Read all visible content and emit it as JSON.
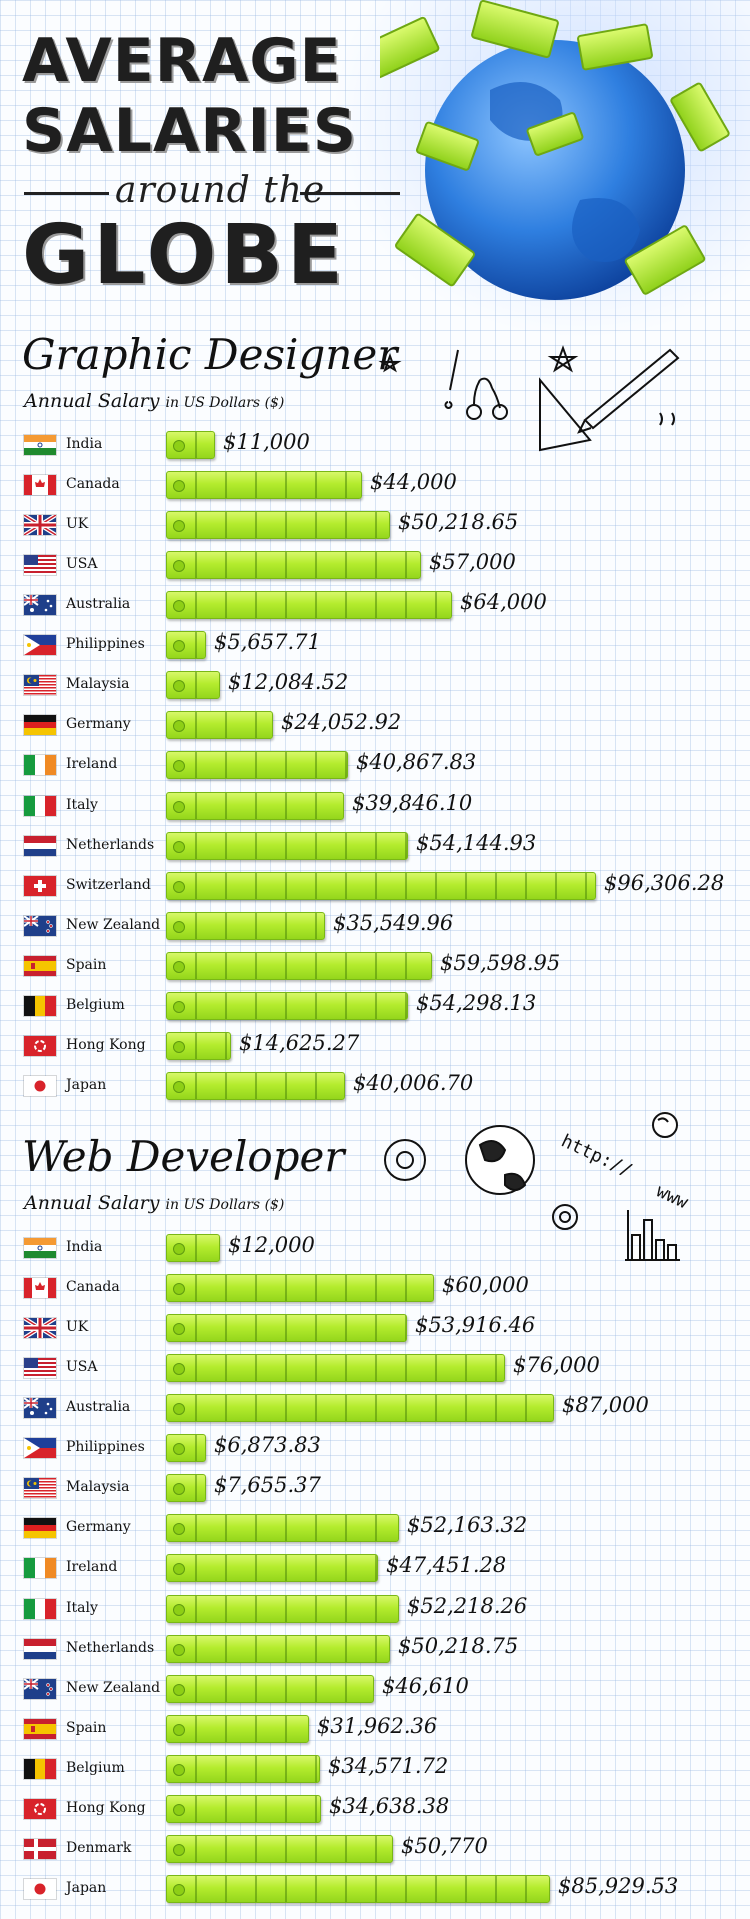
{
  "header": {
    "line1": "Average",
    "line2": "Salaries",
    "line3": "around the",
    "line4": "Globe"
  },
  "colors": {
    "money_green": "#b4ec2e",
    "globe_blue": "#2f7fe0",
    "ink": "#111111"
  },
  "chart_data": [
    {
      "type": "bar",
      "title": "Graphic Designer",
      "ylabel": "Annual Salary",
      "unit": "in US Dollars ($)",
      "categories": [
        "India",
        "Canada",
        "UK",
        "USA",
        "Australia",
        "Philippines",
        "Malaysia",
        "Germany",
        "Ireland",
        "Italy",
        "Netherlands",
        "Switzerland",
        "New Zealand",
        "Spain",
        "Belgium",
        "Hong Kong",
        "Japan"
      ],
      "values": [
        11000,
        44000,
        50218.65,
        57000,
        64000,
        5657.71,
        12084.52,
        24052.92,
        40867.83,
        39846.1,
        54144.93,
        96306.28,
        35549.96,
        59598.95,
        54298.13,
        14625.27,
        40006.7
      ],
      "labels": [
        "$11,000",
        "$44,000",
        "$50,218.65",
        "$57,000",
        "$64,000",
        "$5,657.71",
        "$12,084.52",
        "$24,052.92",
        "$40,867.83",
        "$39,846.10",
        "$54,144.93",
        "$96,306.28",
        "$35,549.96",
        "$59,598.95",
        "$54,298.13",
        "$14,625.27",
        "$40,006.70"
      ],
      "flags": [
        "in",
        "ca",
        "uk",
        "us",
        "au",
        "ph",
        "my",
        "de",
        "ie",
        "it",
        "nl",
        "ch",
        "nz",
        "es",
        "be",
        "hk",
        "jp"
      ]
    },
    {
      "type": "bar",
      "title": "Web Developer",
      "ylabel": "Annual Salary",
      "unit": "in US Dollars ($)",
      "categories": [
        "India",
        "Canada",
        "UK",
        "USA",
        "Australia",
        "Philippines",
        "Malaysia",
        "Germany",
        "Ireland",
        "Italy",
        "Netherlands",
        "New Zealand",
        "Spain",
        "Belgium",
        "Hong Kong",
        "Denmark",
        "Japan"
      ],
      "values": [
        12000,
        60000,
        53916.46,
        76000,
        87000,
        6873.83,
        7655.37,
        52163.32,
        47451.28,
        52218.26,
        50218.75,
        46610,
        31962.36,
        34571.72,
        34638.38,
        50770,
        85929.53
      ],
      "labels": [
        "$12,000",
        "$60,000",
        "$53,916.46",
        "$76,000",
        "$87,000",
        "$6,873.83",
        "$7,655.37",
        "$52,163.32",
        "$47,451.28",
        "$52,218.26",
        "$50,218.75",
        "$46,610",
        "$31,962.36",
        "$34,571.72",
        "$34,638.38",
        "$50,770",
        "$85,929.53"
      ],
      "flags": [
        "in",
        "ca",
        "uk",
        "us",
        "au",
        "ph",
        "my",
        "de",
        "ie",
        "it",
        "nl",
        "nz",
        "es",
        "be",
        "hk",
        "dk",
        "jp"
      ]
    }
  ],
  "doodles": {
    "web_text": "http://",
    "www_text": "www"
  }
}
